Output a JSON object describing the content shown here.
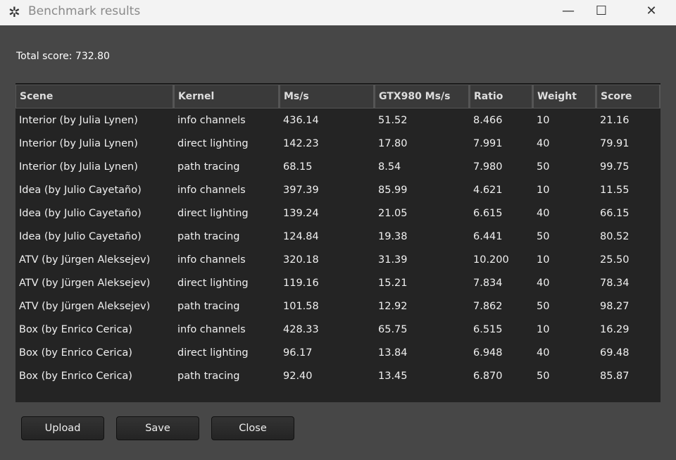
{
  "window": {
    "title": "Benchmark results",
    "minimize": "—",
    "maximize": "☐",
    "close": "✕"
  },
  "total_score_label": "Total score: 732.80",
  "table": {
    "headers": [
      "Scene",
      "Kernel",
      "Ms/s",
      "GTX980 Ms/s",
      "Ratio",
      "Weight",
      "Score"
    ],
    "rows": [
      [
        "Interior (by Julia Lynen)",
        "info channels",
        "436.14",
        "51.52",
        "8.466",
        "10",
        "21.16"
      ],
      [
        "Interior (by Julia Lynen)",
        "direct lighting",
        "142.23",
        "17.80",
        "7.991",
        "40",
        "79.91"
      ],
      [
        "Interior (by Julia Lynen)",
        "path tracing",
        "68.15",
        "8.54",
        "7.980",
        "50",
        "99.75"
      ],
      [
        "Idea (by Julio Cayetaño)",
        "info channels",
        "397.39",
        "85.99",
        "4.621",
        "10",
        "11.55"
      ],
      [
        "Idea (by Julio Cayetaño)",
        "direct lighting",
        "139.24",
        "21.05",
        "6.615",
        "40",
        "66.15"
      ],
      [
        "Idea (by Julio Cayetaño)",
        "path tracing",
        "124.84",
        "19.38",
        "6.441",
        "50",
        "80.52"
      ],
      [
        "ATV (by Jürgen Aleksejev)",
        "info channels",
        "320.18",
        "31.39",
        "10.200",
        "10",
        "25.50"
      ],
      [
        "ATV (by Jürgen Aleksejev)",
        "direct lighting",
        "119.16",
        "15.21",
        "7.834",
        "40",
        "78.34"
      ],
      [
        "ATV (by Jürgen Aleksejev)",
        "path tracing",
        "101.58",
        "12.92",
        "7.862",
        "50",
        "98.27"
      ],
      [
        "Box (by Enrico Cerica)",
        "info channels",
        "428.33",
        "65.75",
        "6.515",
        "10",
        "16.29"
      ],
      [
        "Box (by Enrico Cerica)",
        "direct lighting",
        "96.17",
        "13.84",
        "6.948",
        "40",
        "69.48"
      ],
      [
        "Box (by Enrico Cerica)",
        "path tracing",
        "92.40",
        "13.45",
        "6.870",
        "50",
        "85.87"
      ]
    ]
  },
  "buttons": {
    "upload": "Upload",
    "save": "Save",
    "close": "Close"
  }
}
